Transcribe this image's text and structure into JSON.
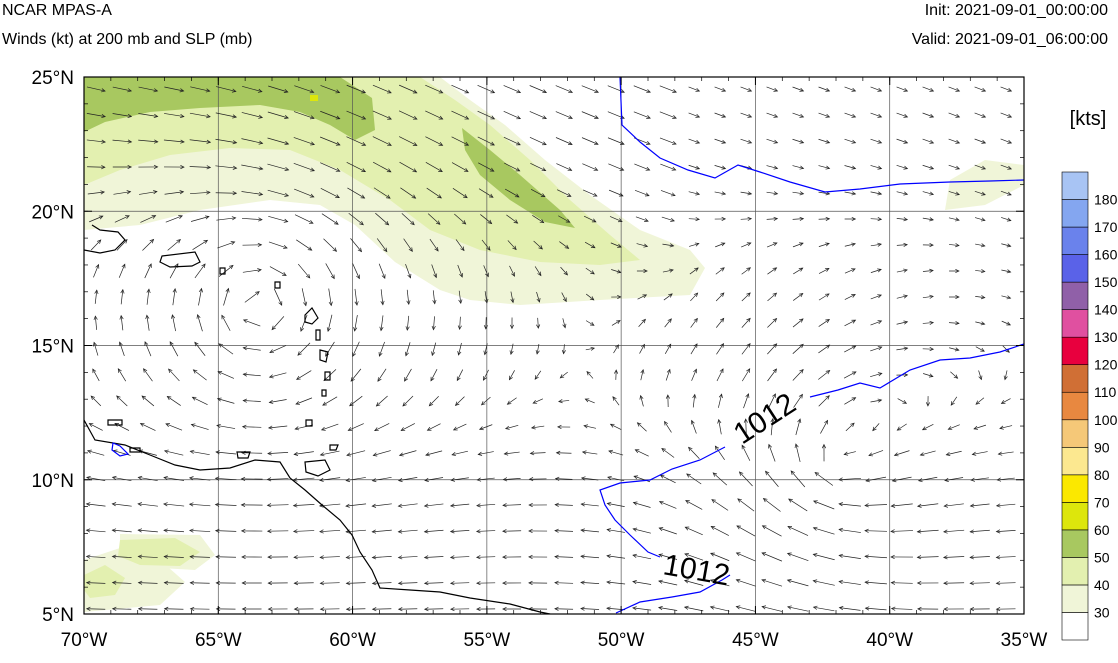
{
  "header": {
    "model": "NCAR MPAS-A",
    "field": "Winds (kt) at 200 mb and SLP (mb)",
    "init": "Init: 2021-09-01_00:00:00",
    "valid": "Valid: 2021-09-01_06:00:00"
  },
  "map": {
    "lon_range": [
      -70,
      -35
    ],
    "lat_range": [
      5,
      25
    ],
    "lon_ticks": [
      -70,
      -65,
      -60,
      -55,
      -50,
      -45,
      -40,
      -35
    ],
    "lat_ticks": [
      5,
      10,
      15,
      20,
      25
    ],
    "lon_labels": [
      "70°W",
      "65°W",
      "60°W",
      "55°W",
      "50°W",
      "45°W",
      "40°W",
      "35°W"
    ],
    "lat_labels": [
      "5°N",
      "10°N",
      "15°N",
      "20°N",
      "25°N"
    ],
    "contour_labels": [
      "1012",
      "1012"
    ],
    "contour_color": "#0000ff",
    "coast_color": "#000000"
  },
  "legend": {
    "unit": "[kts]",
    "levels": [
      "30",
      "40",
      "50",
      "60",
      "70",
      "80",
      "90",
      "100",
      "110",
      "120",
      "130",
      "140",
      "150",
      "160",
      "170",
      "180"
    ],
    "colors": [
      "#ffffff",
      "#f0f5d8",
      "#e3f0b0",
      "#a8c860",
      "#dde60c",
      "#fbe800",
      "#fce890",
      "#f5c878",
      "#e88840",
      "#d06f35",
      "#e8003e",
      "#e050a0",
      "#9060a8",
      "#5a62e8",
      "#6a82ec",
      "#84a6f0",
      "#a8c4f4"
    ]
  }
}
